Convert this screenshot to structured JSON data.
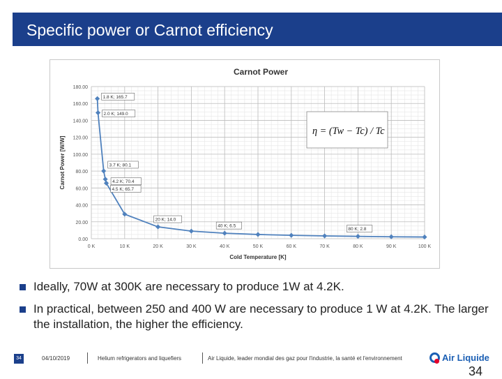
{
  "slide": {
    "title": "Specific power or Carnot efficiency"
  },
  "chart_data": {
    "type": "line",
    "title": "Carnot Power",
    "xlabel": "Cold Temperature [K]",
    "ylabel": "Carnot Power [W/W]",
    "xlim": [
      0,
      100
    ],
    "ylim": [
      0,
      180
    ],
    "xticks": [
      0,
      10,
      20,
      30,
      40,
      50,
      60,
      70,
      80,
      90,
      100
    ],
    "xtick_labels": [
      "0 K",
      "10 K",
      "20 K",
      "30 K",
      "40 K",
      "50 K",
      "60 K",
      "70 K",
      "80 K",
      "90 K",
      "100 K"
    ],
    "yticks": [
      0,
      20,
      40,
      60,
      80,
      100,
      120,
      140,
      160,
      180
    ],
    "ytick_labels": [
      "0.00",
      "20.00",
      "40.00",
      "60.00",
      "80.00",
      "100.00",
      "120.00",
      "140.00",
      "160.00",
      "180.00"
    ],
    "grid": true,
    "line_color": "#4f81bd",
    "formula": "η = (Tw − Tc) / Tc",
    "series": [
      {
        "x": [
          1.8,
          2.0,
          3.7,
          4.2,
          4.5,
          10,
          20,
          30,
          40,
          50,
          60,
          70,
          80,
          90,
          100
        ],
        "y": [
          165.7,
          149.0,
          80.1,
          70.4,
          65.7,
          29.0,
          14.0,
          9.0,
          6.5,
          5.0,
          4.0,
          3.3,
          2.8,
          2.3,
          2.0
        ]
      }
    ],
    "annotations": [
      {
        "text": "1.8 K; 165.7",
        "x": 1.8,
        "y": 165.7
      },
      {
        "text": "2.0 K; 149.0",
        "x": 2.0,
        "y": 149.0
      },
      {
        "text": "3.7 K; 80.1",
        "x": 3.7,
        "y": 80.1
      },
      {
        "text": "4.2 K; 70.4",
        "x": 4.2,
        "y": 70.4
      },
      {
        "text": "4.5 K; 65.7",
        "x": 4.5,
        "y": 65.7
      },
      {
        "text": "20 K; 14.0",
        "x": 20,
        "y": 14.0
      },
      {
        "text": "40 K; 6.5",
        "x": 40,
        "y": 6.5
      },
      {
        "text": "80 K; 2.8",
        "x": 80,
        "y": 2.8
      }
    ]
  },
  "bullets": [
    "Ideally, 70W at 300K are necessary to produce 1W at 4.2K.",
    "In practical, between 250 and 400 W are necessary to produce 1 W at 4.2K. The larger the installation, the higher the efficiency."
  ],
  "footer": {
    "page_small": "34",
    "date": "04/10/2019",
    "topic": "Helium refrigerators and liquefiers",
    "tagline": "Air Liquide, leader mondial des gaz pour l'industrie, la santé et l'environnement",
    "logo_text": "Air Liquide",
    "page_number": "34"
  },
  "colors": {
    "brand_blue": "#1b3f8b",
    "logo_red": "#e4002b"
  }
}
